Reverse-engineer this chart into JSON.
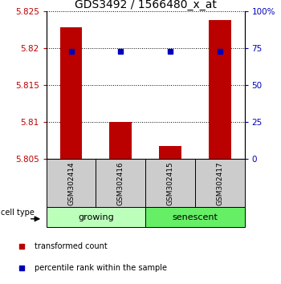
{
  "title": "GDS3492 / 1566480_x_at",
  "samples": [
    "GSM302414",
    "GSM302416",
    "GSM302415",
    "GSM302417"
  ],
  "red_values": [
    5.8228,
    5.81,
    5.8068,
    5.8238
  ],
  "blue_percentiles": [
    73,
    73,
    73,
    73
  ],
  "ylim_left": [
    5.805,
    5.825
  ],
  "ylim_right": [
    0,
    100
  ],
  "yticks_left": [
    5.805,
    5.81,
    5.815,
    5.82,
    5.825
  ],
  "yticks_right": [
    0,
    25,
    50,
    75,
    100
  ],
  "groups": [
    {
      "label": "growing",
      "indices": [
        0,
        1
      ],
      "color": "#bbffbb"
    },
    {
      "label": "senescent",
      "indices": [
        2,
        3
      ],
      "color": "#66ee66"
    }
  ],
  "bar_color": "#bb0000",
  "blue_color": "#0000bb",
  "bar_base": 5.805,
  "bar_width": 0.45,
  "sample_box_color": "#cccccc",
  "title_fontsize": 10,
  "tick_label_fontsize": 7.5,
  "cell_type_label": "cell type",
  "legend_items": [
    {
      "color": "#bb0000",
      "label": "transformed count"
    },
    {
      "color": "#0000bb",
      "label": "percentile rank within the sample"
    }
  ]
}
